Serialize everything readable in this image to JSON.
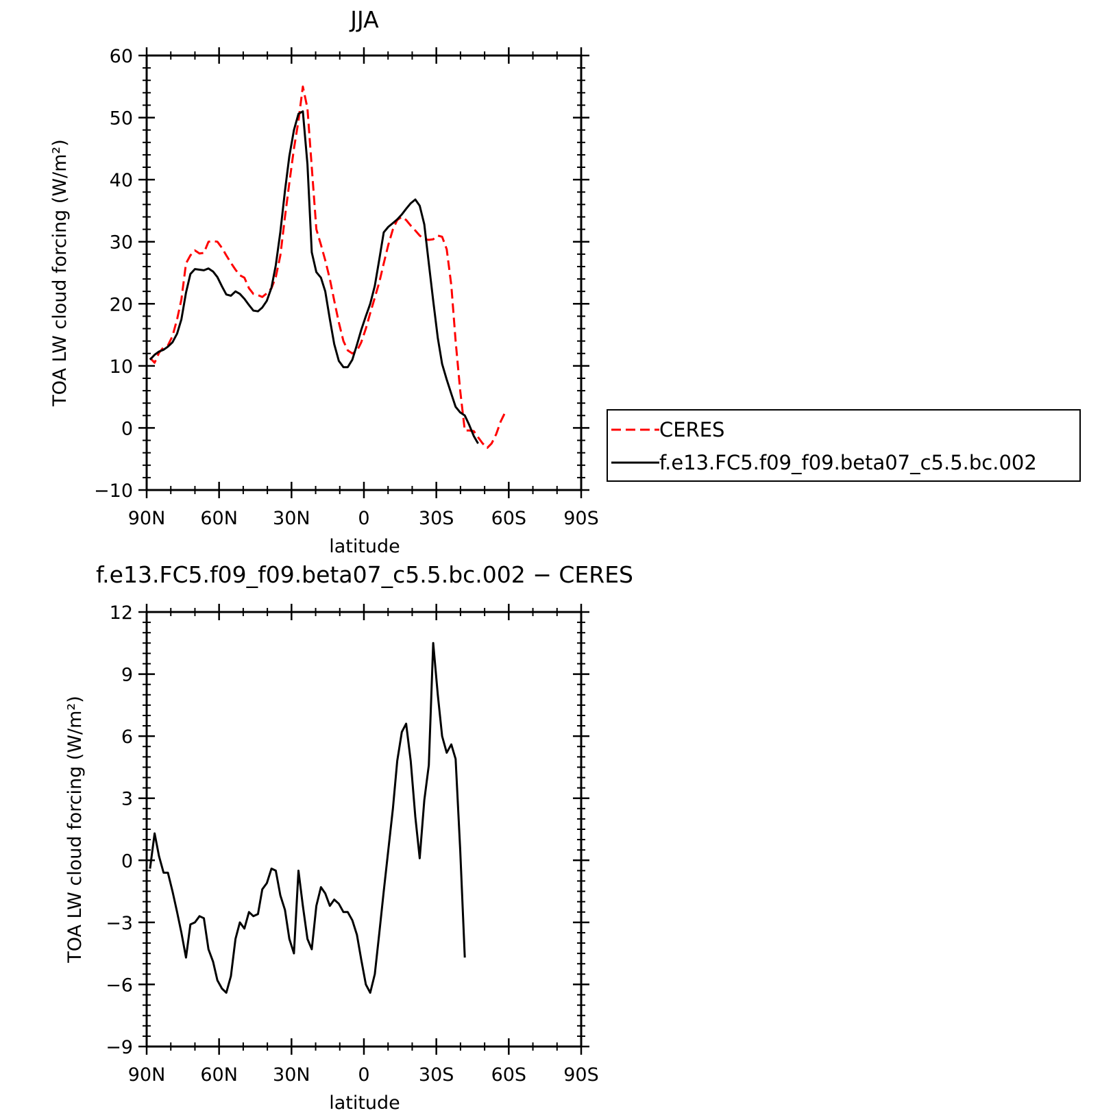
{
  "chart_data": [
    {
      "type": "line",
      "title": "JJA",
      "xlabel": "latitude",
      "ylabel": "TOA LW cloud forcing (W/m²)",
      "xlim": [
        90,
        -90
      ],
      "ylim": [
        -10,
        60
      ],
      "x_ticks": [
        90,
        60,
        30,
        0,
        -30,
        -60,
        -90
      ],
      "x_tick_labels": [
        "90N",
        "60N",
        "30N",
        "0",
        "30S",
        "60S",
        "90S"
      ],
      "y_ticks": [
        -10,
        0,
        10,
        20,
        30,
        40,
        50,
        60
      ],
      "y_tick_labels": [
        "−10",
        "0",
        "10",
        "20",
        "30",
        "40",
        "50",
        "60"
      ],
      "legend_position": "right",
      "series": [
        {
          "name": "CERES",
          "color": "#ff0000",
          "dash": "dashed",
          "points": [
            [
              88.6,
              11.3
            ],
            [
              86.7,
              10.5
            ],
            [
              84.9,
              12.1
            ],
            [
              83.0,
              13.0
            ],
            [
              81.2,
              13.3
            ],
            [
              79.3,
              14.8
            ],
            [
              77.4,
              17.5
            ],
            [
              75.6,
              20.7
            ],
            [
              73.7,
              26.5
            ],
            [
              71.9,
              27.8
            ],
            [
              70.0,
              28.6
            ],
            [
              68.1,
              28.1
            ],
            [
              66.3,
              28.2
            ],
            [
              64.4,
              30.0
            ],
            [
              62.5,
              30.1
            ],
            [
              60.7,
              30.0
            ],
            [
              58.8,
              29.0
            ],
            [
              57.0,
              27.8
            ],
            [
              55.1,
              26.6
            ],
            [
              53.2,
              25.5
            ],
            [
              51.4,
              24.6
            ],
            [
              49.5,
              24.2
            ],
            [
              47.6,
              22.5
            ],
            [
              45.8,
              21.6
            ],
            [
              43.9,
              21.4
            ],
            [
              42.1,
              21.1
            ],
            [
              40.2,
              21.7
            ],
            [
              38.3,
              22.5
            ],
            [
              36.5,
              24.3
            ],
            [
              34.6,
              27.8
            ],
            [
              32.7,
              34.0
            ],
            [
              30.9,
              39.5
            ],
            [
              29.0,
              45.0
            ],
            [
              27.1,
              49.5
            ],
            [
              25.3,
              55.0
            ],
            [
              23.4,
              51.5
            ],
            [
              21.6,
              42.0
            ],
            [
              19.7,
              32.0
            ],
            [
              17.8,
              29.5
            ],
            [
              16.0,
              27.0
            ],
            [
              14.1,
              24.0
            ],
            [
              12.3,
              20.5
            ],
            [
              10.4,
              17.0
            ],
            [
              8.5,
              14.0
            ],
            [
              6.7,
              12.5
            ],
            [
              4.8,
              12.0
            ],
            [
              2.9,
              12.4
            ],
            [
              1.1,
              13.8
            ],
            [
              -0.8,
              16.0
            ],
            [
              -2.6,
              18.5
            ],
            [
              -4.5,
              21.0
            ],
            [
              -6.4,
              23.5
            ],
            [
              -8.2,
              26.5
            ],
            [
              -10.1,
              29.5
            ],
            [
              -12.0,
              32.0
            ],
            [
              -13.8,
              33.5
            ],
            [
              -15.7,
              34.0
            ],
            [
              -17.5,
              33.5
            ],
            [
              -19.4,
              32.6
            ],
            [
              -21.3,
              31.8
            ],
            [
              -23.1,
              31.0
            ],
            [
              -25.0,
              30.4
            ],
            [
              -26.9,
              30.3
            ],
            [
              -28.7,
              30.4
            ],
            [
              -30.6,
              31.0
            ],
            [
              -32.4,
              30.8
            ],
            [
              -34.3,
              28.8
            ],
            [
              -36.2,
              23.0
            ],
            [
              -38.0,
              14.0
            ],
            [
              -39.9,
              6.0
            ],
            [
              -41.8,
              -0.4
            ],
            [
              -43.6,
              -0.4
            ],
            [
              -45.5,
              -0.5
            ],
            [
              -47.3,
              -1.5
            ],
            [
              -49.2,
              -2.5
            ],
            [
              -51.1,
              -3.2
            ],
            [
              -52.9,
              -2.5
            ],
            [
              -54.8,
              -1.0
            ],
            [
              -56.6,
              1.0
            ],
            [
              -58.5,
              2.5
            ]
          ]
        },
        {
          "name": "f.e13.FC5.f09_f09.beta07_c5.5.bc.002",
          "color": "#000000",
          "dash": "solid",
          "points": [
            [
              88.6,
              11.0
            ],
            [
              86.7,
              11.8
            ],
            [
              84.9,
              12.3
            ],
            [
              83.0,
              12.6
            ],
            [
              81.2,
              13.1
            ],
            [
              79.3,
              13.8
            ],
            [
              77.4,
              15.2
            ],
            [
              75.6,
              17.5
            ],
            [
              73.7,
              21.8
            ],
            [
              71.9,
              24.8
            ],
            [
              70.0,
              25.6
            ],
            [
              68.1,
              25.5
            ],
            [
              66.3,
              25.4
            ],
            [
              64.4,
              25.7
            ],
            [
              62.5,
              25.2
            ],
            [
              60.7,
              24.3
            ],
            [
              58.8,
              22.8
            ],
            [
              57.0,
              21.5
            ],
            [
              55.1,
              21.3
            ],
            [
              53.2,
              22.0
            ],
            [
              51.4,
              21.6
            ],
            [
              49.5,
              20.8
            ],
            [
              47.6,
              19.8
            ],
            [
              45.8,
              18.9
            ],
            [
              43.9,
              18.8
            ],
            [
              42.1,
              19.4
            ],
            [
              40.2,
              20.5
            ],
            [
              38.3,
              22.6
            ],
            [
              36.5,
              26.2
            ],
            [
              34.6,
              31.6
            ],
            [
              32.7,
              38.2
            ],
            [
              30.9,
              43.8
            ],
            [
              29.0,
              48.0
            ],
            [
              27.1,
              50.6
            ],
            [
              25.3,
              51.0
            ],
            [
              23.4,
              42.5
            ],
            [
              21.6,
              28.3
            ],
            [
              19.7,
              25.1
            ],
            [
              17.8,
              24.2
            ],
            [
              16.0,
              22.0
            ],
            [
              14.1,
              17.5
            ],
            [
              12.3,
              13.5
            ],
            [
              10.4,
              10.8
            ],
            [
              8.5,
              9.8
            ],
            [
              6.7,
              9.8
            ],
            [
              4.8,
              11.0
            ],
            [
              2.9,
              13.4
            ],
            [
              1.1,
              15.8
            ],
            [
              -0.8,
              18.0
            ],
            [
              -2.6,
              20.0
            ],
            [
              -4.5,
              22.9
            ],
            [
              -6.4,
              27.2
            ],
            [
              -8.2,
              31.5
            ],
            [
              -10.1,
              32.4
            ],
            [
              -12.0,
              33.0
            ],
            [
              -13.8,
              33.6
            ],
            [
              -15.7,
              34.4
            ],
            [
              -17.5,
              35.3
            ],
            [
              -19.4,
              36.2
            ],
            [
              -21.3,
              36.8
            ],
            [
              -23.1,
              35.8
            ],
            [
              -25.0,
              32.8
            ],
            [
              -26.9,
              26.5
            ],
            [
              -28.7,
              20.5
            ],
            [
              -30.6,
              14.5
            ],
            [
              -32.4,
              10.3
            ],
            [
              -34.3,
              7.8
            ],
            [
              -36.2,
              5.5
            ],
            [
              -38.0,
              3.4
            ],
            [
              -39.9,
              2.5
            ],
            [
              -41.8,
              2.0
            ],
            [
              -43.6,
              0.5
            ],
            [
              -45.5,
              -1.3
            ],
            [
              -47.3,
              -2.5
            ]
          ]
        }
      ]
    },
    {
      "type": "line",
      "title": "f.e13.FC5.f09_f09.beta07_c5.5.bc.002 − CERES",
      "xlabel": "latitude",
      "ylabel": "TOA LW cloud forcing (W/m²)",
      "xlim": [
        90,
        -90
      ],
      "ylim": [
        -9,
        12
      ],
      "x_ticks": [
        90,
        60,
        30,
        0,
        -30,
        -60,
        -90
      ],
      "x_tick_labels": [
        "90N",
        "60N",
        "30N",
        "0",
        "30S",
        "60S",
        "90S"
      ],
      "y_ticks": [
        -9,
        -6,
        -3,
        0,
        3,
        6,
        9,
        12
      ],
      "y_tick_labels": [
        "−9",
        "−6",
        "−3",
        "0",
        "3",
        "6",
        "9",
        "12"
      ],
      "series": [
        {
          "color": "#000000",
          "dash": "solid",
          "points": [
            [
              88.6,
              -0.4
            ],
            [
              86.7,
              1.3
            ],
            [
              84.9,
              0.2
            ],
            [
              83.0,
              -0.6
            ],
            [
              81.2,
              -0.6
            ],
            [
              79.3,
              -1.5
            ],
            [
              77.4,
              -2.5
            ],
            [
              75.6,
              -3.5
            ],
            [
              73.7,
              -4.7
            ],
            [
              71.9,
              -3.1
            ],
            [
              70.0,
              -3.0
            ],
            [
              68.1,
              -2.7
            ],
            [
              66.3,
              -2.8
            ],
            [
              64.4,
              -4.3
            ],
            [
              62.5,
              -4.9
            ],
            [
              60.7,
              -5.8
            ],
            [
              58.8,
              -6.2
            ],
            [
              57.0,
              -6.4
            ],
            [
              55.1,
              -5.6
            ],
            [
              53.2,
              -3.8
            ],
            [
              51.4,
              -3.0
            ],
            [
              49.5,
              -3.3
            ],
            [
              47.6,
              -2.5
            ],
            [
              45.8,
              -2.7
            ],
            [
              43.9,
              -2.6
            ],
            [
              42.1,
              -1.4
            ],
            [
              40.2,
              -1.1
            ],
            [
              38.3,
              -0.4
            ],
            [
              36.5,
              -0.5
            ],
            [
              34.6,
              -1.7
            ],
            [
              32.7,
              -2.4
            ],
            [
              30.9,
              -3.8
            ],
            [
              29.0,
              -4.5
            ],
            [
              27.1,
              -0.5
            ],
            [
              25.3,
              -2.2
            ],
            [
              23.4,
              -3.8
            ],
            [
              21.6,
              -4.3
            ],
            [
              19.7,
              -2.2
            ],
            [
              17.8,
              -1.3
            ],
            [
              16.0,
              -1.6
            ],
            [
              14.1,
              -2.2
            ],
            [
              12.3,
              -1.9
            ],
            [
              10.4,
              -2.1
            ],
            [
              8.5,
              -2.5
            ],
            [
              6.7,
              -2.5
            ],
            [
              4.8,
              -2.9
            ],
            [
              2.9,
              -3.6
            ],
            [
              1.1,
              -4.8
            ],
            [
              -0.8,
              -6.0
            ],
            [
              -2.6,
              -6.4
            ],
            [
              -4.5,
              -5.5
            ],
            [
              -6.4,
              -3.5
            ],
            [
              -8.2,
              -1.5
            ],
            [
              -10.1,
              0.5
            ],
            [
              -12.0,
              2.5
            ],
            [
              -13.8,
              4.8
            ],
            [
              -15.7,
              6.2
            ],
            [
              -17.5,
              6.6
            ],
            [
              -19.4,
              4.8
            ],
            [
              -21.3,
              2.1
            ],
            [
              -23.1,
              0.1
            ],
            [
              -25.0,
              2.9
            ],
            [
              -26.9,
              4.6
            ],
            [
              -28.7,
              10.5
            ],
            [
              -30.6,
              8.0
            ],
            [
              -32.4,
              6.0
            ],
            [
              -34.3,
              5.2
            ],
            [
              -36.2,
              5.6
            ],
            [
              -38.0,
              4.9
            ],
            [
              -39.9,
              0.5
            ],
            [
              -41.8,
              -4.7
            ]
          ]
        }
      ]
    }
  ]
}
